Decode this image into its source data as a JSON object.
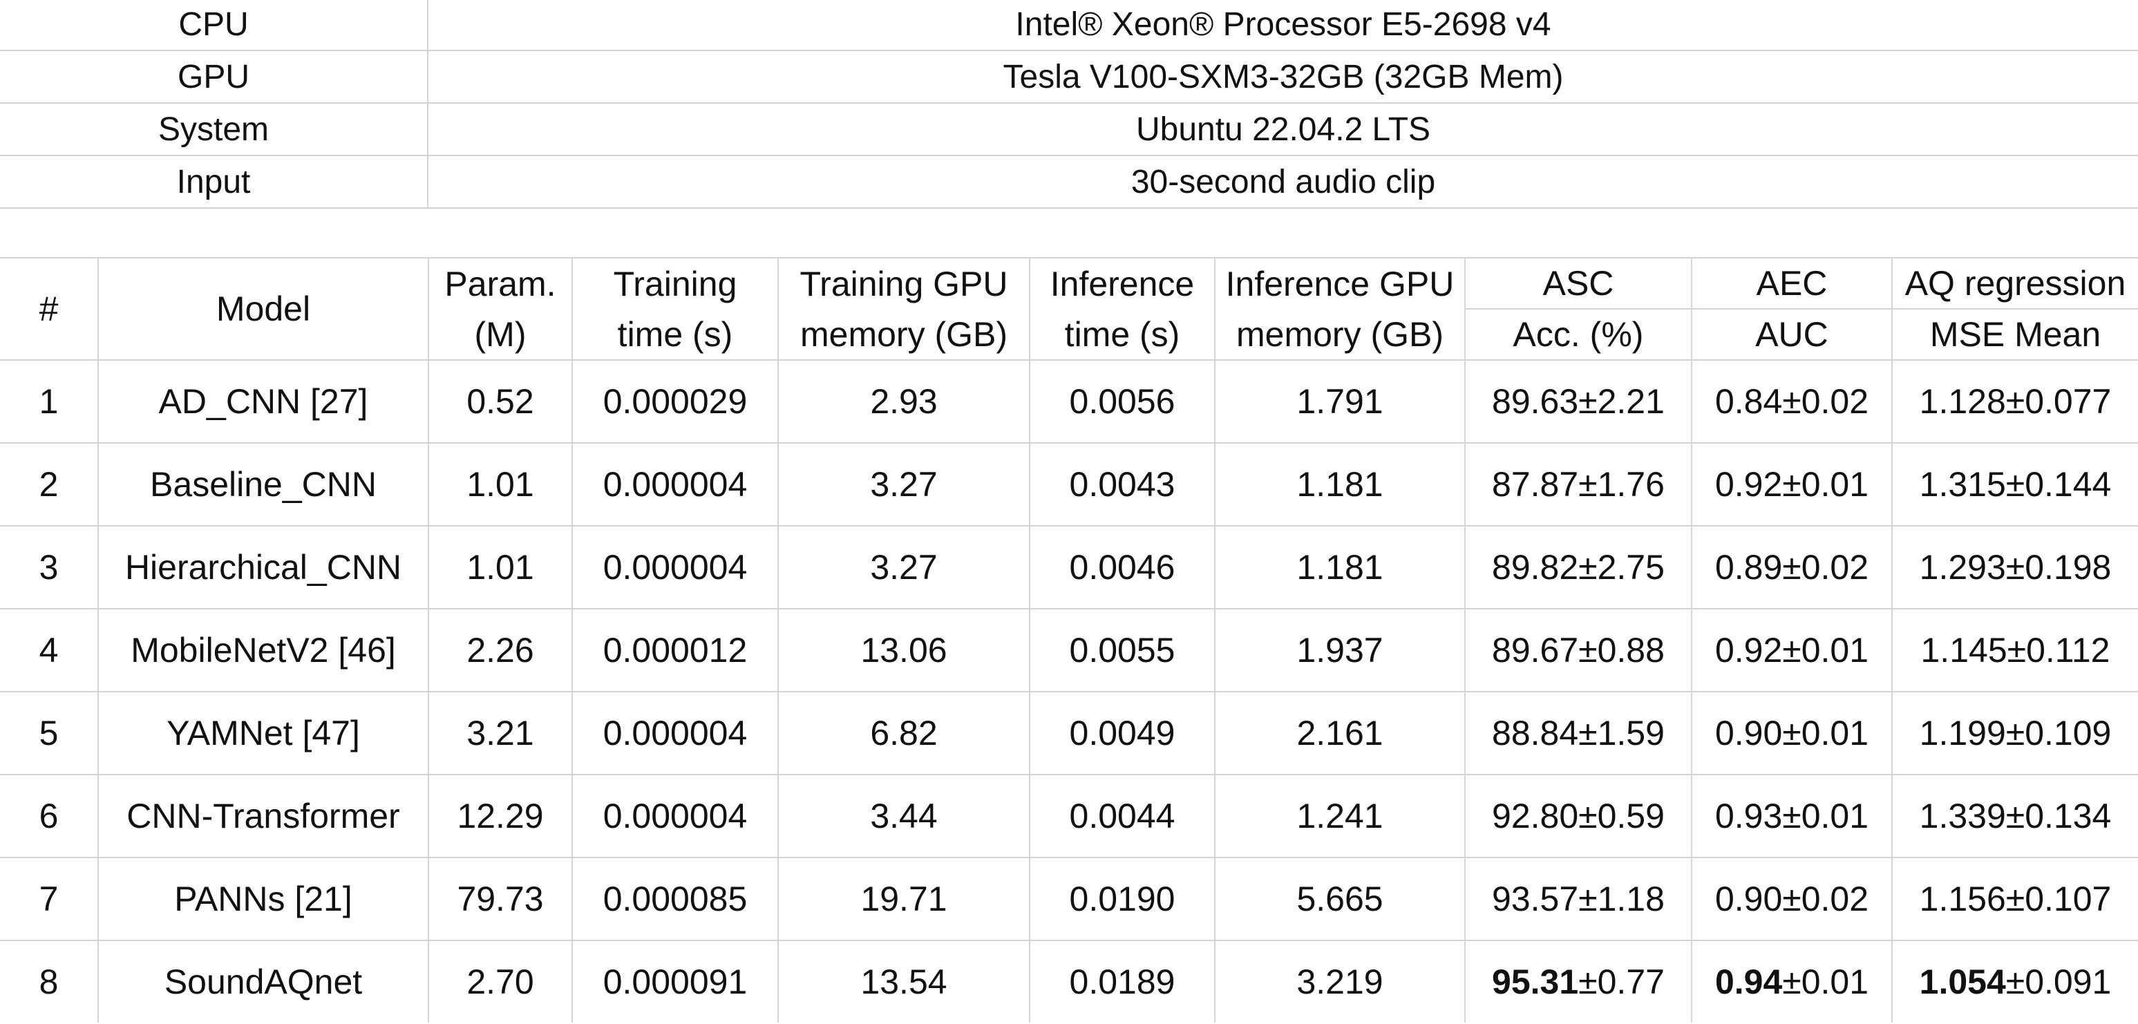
{
  "specs": [
    {
      "label": "CPU",
      "value": "Intel® Xeon® Processor E5-2698 v4"
    },
    {
      "label": "GPU",
      "value": "Tesla V100-SXM3-32GB (32GB Mem)"
    },
    {
      "label": "System",
      "value": "Ubuntu 22.04.2 LTS"
    },
    {
      "label": "Input",
      "value": "30-second audio clip"
    }
  ],
  "results": {
    "headers": {
      "num": "#",
      "model": "Model",
      "param_1": "Param.",
      "param_2": "(M)",
      "train_time_1": "Training",
      "train_time_2": "time (s)",
      "train_mem_1": "Training GPU",
      "train_mem_2": "memory (GB)",
      "inf_time_1": "Inference",
      "inf_time_2": "time (s)",
      "inf_mem_1": "Inference GPU",
      "inf_mem_2": "memory (GB)",
      "asc_1": "ASC",
      "asc_2": "Acc. (%)",
      "aec_1": "AEC",
      "aec_2": "AUC",
      "aq_1": "AQ regression",
      "aq_2": "MSE Mean"
    },
    "rows": [
      {
        "num": "1",
        "model": "AD_CNN [27]",
        "param": "0.52",
        "train_time": "0.000029",
        "train_mem": "2.93",
        "inf_time": "0.0056",
        "inf_mem": "1.791",
        "asc": "89.63±2.21",
        "aec": "0.84±0.02",
        "aq": "1.128±0.077"
      },
      {
        "num": "2",
        "model": "Baseline_CNN",
        "param": "1.01",
        "train_time": "0.000004",
        "train_mem": "3.27",
        "inf_time": "0.0043",
        "inf_mem": "1.181",
        "asc": "87.87±1.76",
        "aec": "0.92±0.01",
        "aq": "1.315±0.144"
      },
      {
        "num": "3",
        "model": "Hierarchical_CNN",
        "param": "1.01",
        "train_time": "0.000004",
        "train_mem": "3.27",
        "inf_time": "0.0046",
        "inf_mem": "1.181",
        "asc": "89.82±2.75",
        "aec": "0.89±0.02",
        "aq": "1.293±0.198"
      },
      {
        "num": "4",
        "model": "MobileNetV2 [46]",
        "param": "2.26",
        "train_time": "0.000012",
        "train_mem": "13.06",
        "inf_time": "0.0055",
        "inf_mem": "1.937",
        "asc": "89.67±0.88",
        "aec": "0.92±0.01",
        "aq": "1.145±0.112"
      },
      {
        "num": "5",
        "model": "YAMNet [47]",
        "param": "3.21",
        "train_time": "0.000004",
        "train_mem": "6.82",
        "inf_time": "0.0049",
        "inf_mem": "2.161",
        "asc": "88.84±1.59",
        "aec": "0.90±0.01",
        "aq": "1.199±0.109"
      },
      {
        "num": "6",
        "model": "CNN-Transformer",
        "param": "12.29",
        "train_time": "0.000004",
        "train_mem": "3.44",
        "inf_time": "0.0044",
        "inf_mem": "1.241",
        "asc": "92.80±0.59",
        "aec": "0.93±0.01",
        "aq": "1.339±0.134"
      },
      {
        "num": "7",
        "model": "PANNs [21]",
        "param": "79.73",
        "train_time": "0.000085",
        "train_mem": "19.71",
        "inf_time": "0.0190",
        "inf_mem": "5.665",
        "asc": "93.57±1.18",
        "aec": "0.90±0.02",
        "aq": "1.156±0.107"
      }
    ],
    "last_row": {
      "num": "8",
      "model": "SoundAQnet",
      "param": "2.70",
      "train_time": "0.000091",
      "train_mem": "13.54",
      "inf_time": "0.0189",
      "inf_mem": "3.219",
      "asc_bold": "95.31",
      "asc_rest": "±0.77",
      "aec_bold": "0.94",
      "aec_rest": "±0.01",
      "aq_bold": "1.054",
      "aq_rest": "±0.091"
    }
  }
}
